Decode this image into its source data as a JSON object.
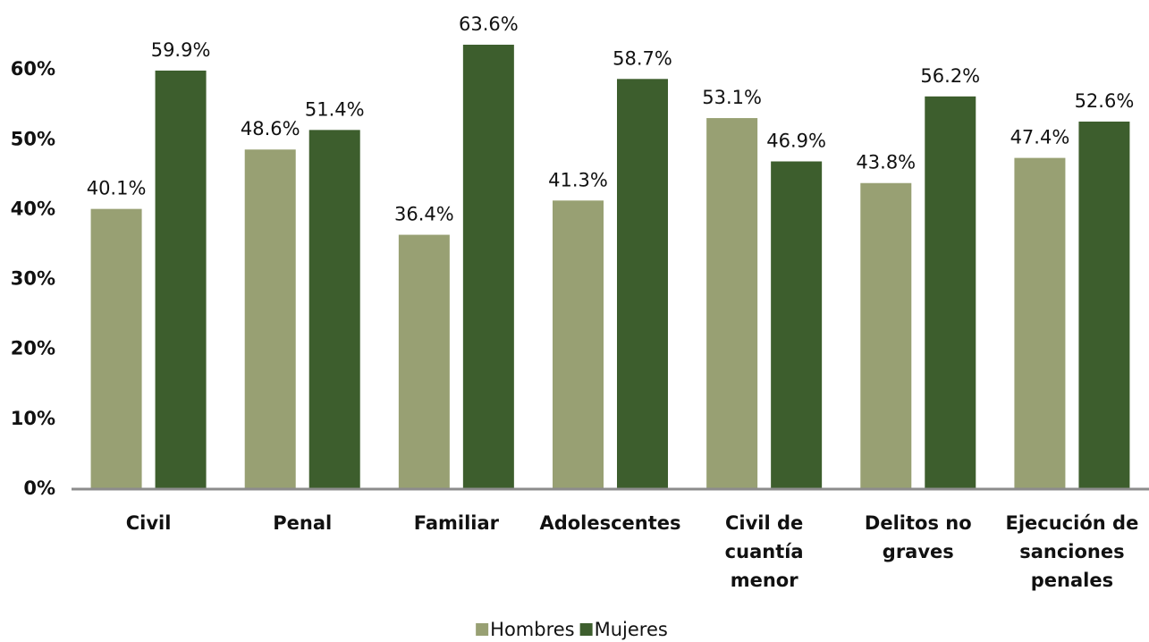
{
  "chart_data": {
    "type": "bar",
    "categories": [
      "Civil",
      "Penal",
      "Familiar",
      "Adolescentes",
      "Civil de cuantía menor",
      "Delitos no graves",
      "Ejecución de sanciones penales"
    ],
    "series": [
      {
        "name": "Hombres",
        "color": "#98a073",
        "values": [
          40.1,
          48.6,
          36.4,
          41.3,
          53.1,
          43.8,
          47.4
        ],
        "value_labels": [
          "40.1%",
          "48.6%",
          "36.4%",
          "41.3%",
          "53.1%",
          "43.8%",
          "47.4%"
        ]
      },
      {
        "name": "Mujeres",
        "color": "#3d5e2d",
        "values": [
          59.9,
          51.4,
          63.6,
          58.7,
          46.9,
          56.2,
          52.6
        ],
        "value_labels": [
          "59.9%",
          "51.4%",
          "63.6%",
          "58.7%",
          "46.9%",
          "56.2%",
          "52.6%"
        ]
      }
    ],
    "ylim": [
      0,
      70
    ],
    "yticks": [
      {
        "value": 0,
        "label": "0%"
      },
      {
        "value": 10,
        "label": "10%"
      },
      {
        "value": 20,
        "label": "20%"
      },
      {
        "value": 30,
        "label": "30%"
      },
      {
        "value": 40,
        "label": "40%"
      },
      {
        "value": 50,
        "label": "50%"
      },
      {
        "value": 60,
        "label": "60%"
      }
    ],
    "grid": false
  }
}
